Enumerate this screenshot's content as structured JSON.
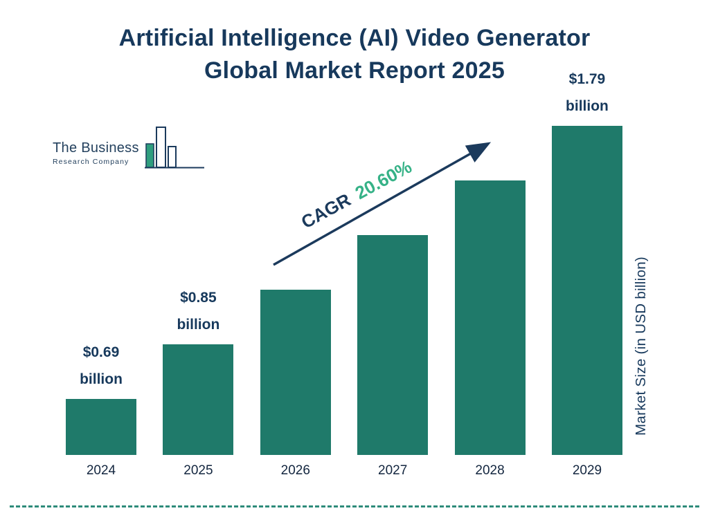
{
  "title": {
    "line1": "Artificial Intelligence (AI) Video Generator",
    "line2": "Global Market Report 2025"
  },
  "logo": {
    "line1": "The Business",
    "line2": "Research Company"
  },
  "cagr": {
    "label": "CAGR",
    "value": "20.60%"
  },
  "chart_data": {
    "type": "bar",
    "title": "Artificial Intelligence (AI) Video Generator Global Market Report 2025",
    "ylabel": "Market Size (in USD billion)",
    "xlabel": "",
    "categories": [
      "2024",
      "2025",
      "2026",
      "2027",
      "2028",
      "2029"
    ],
    "values": [
      0.69,
      0.85,
      1.03,
      1.24,
      1.48,
      1.79
    ],
    "cagr": "20.60%",
    "legend": "none",
    "grid": false,
    "bar_color": "#1f7a6a",
    "bars": [
      {
        "year": "2024",
        "value": 0.69,
        "label_value": "$0.69",
        "label_unit": "billion"
      },
      {
        "year": "2025",
        "value": 0.85,
        "label_value": "$0.85",
        "label_unit": "billion"
      },
      {
        "year": "2026",
        "value": 1.03
      },
      {
        "year": "2027",
        "value": 1.24
      },
      {
        "year": "2028",
        "value": 1.48
      },
      {
        "year": "2029",
        "value": 1.79,
        "label_value": "$1.79",
        "label_unit": "billion"
      }
    ]
  },
  "colors": {
    "title_navy": "#17395c",
    "bar_teal": "#1f7a6a",
    "cagr_green": "#36b287",
    "arrow_navy": "#1b3a5c",
    "divider_teal": "#2e8b7a"
  }
}
